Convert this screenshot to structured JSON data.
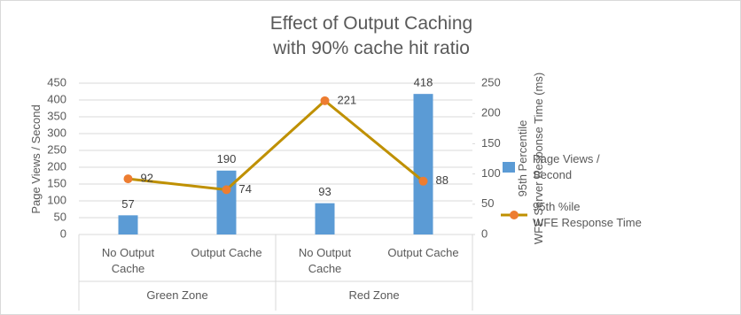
{
  "chart_data": {
    "type": "bar-line",
    "title": "Effect of Output Caching\nwith 90% cache hit ratio",
    "ylabel": "Page Views / Second",
    "y2label": "95th Percentile\nWFE Server Response Time (ms)",
    "categories": [
      "No Output\nCache",
      "Output Cache",
      "No Output\nCache",
      "Output Cache"
    ],
    "groups": [
      "Green Zone",
      "Red Zone"
    ],
    "series": [
      {
        "name": "Page Views /\nSecond",
        "type": "bar",
        "color": "#5b9bd5",
        "values": [
          57,
          190,
          93,
          418
        ]
      },
      {
        "name": "95th %ile\nWFE Response Time",
        "type": "line",
        "axis": "y2",
        "color": "#bf9000",
        "marker_color": "#ed7d31",
        "values": [
          92,
          74,
          221,
          88
        ]
      }
    ],
    "ylim": [
      0,
      450
    ],
    "yticks": [
      0,
      50,
      100,
      150,
      200,
      250,
      300,
      350,
      400,
      450
    ],
    "y2lim": [
      0,
      250
    ],
    "y2ticks": [
      0,
      50,
      100,
      150,
      200,
      250
    ],
    "grid": true,
    "legend": "right"
  }
}
